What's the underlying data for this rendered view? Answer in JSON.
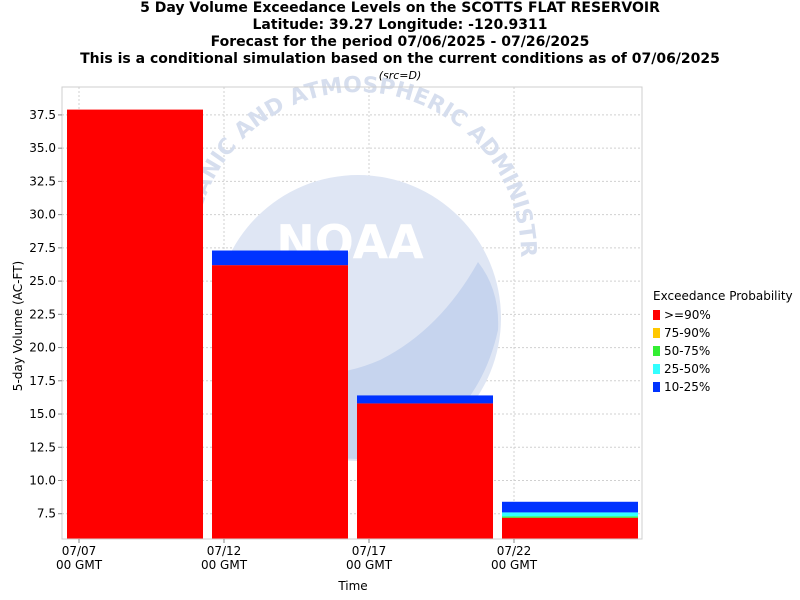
{
  "titles": {
    "line1": "5 Day Volume Exceedance Levels on the SCOTTS FLAT RESERVOIR",
    "line2": "Latitude: 39.27 Longitude: -120.9311",
    "line3": "Forecast for the period 07/06/2025 - 07/26/2025",
    "line4": "This is a conditional simulation based on the current conditions as of 07/06/2025",
    "source": "(src=D)"
  },
  "watermark": {
    "arc_text": "OCEANIC AND ATMOSPHERIC ADMINISTRATION",
    "logo_text": "NOAA"
  },
  "legend": {
    "title": "Exceedance Probability",
    "items": [
      {
        "label": ">=90%",
        "color": "#ff0000"
      },
      {
        "label": "75-90%",
        "color": "#ffc800"
      },
      {
        "label": "50-75%",
        "color": "#33ee33"
      },
      {
        "label": "25-50%",
        "color": "#33ffff"
      },
      {
        "label": "10-25%",
        "color": "#0033ff"
      }
    ]
  },
  "chart_data": {
    "type": "bar",
    "stacked": true,
    "xlabel": "Time",
    "ylabel": "5-day Volume (AC-FT)",
    "ylim": [
      5.6,
      39.6
    ],
    "yticks": [
      "7.5",
      "10.0",
      "12.5",
      "15.0",
      "17.5",
      "20.0",
      "22.5",
      "25.0",
      "27.5",
      "30.0",
      "32.5",
      "35.0",
      "37.5"
    ],
    "xticks": [
      {
        "line1": "07/07",
        "line2": "00 GMT"
      },
      {
        "line1": "07/12",
        "line2": "00 GMT"
      },
      {
        "line1": "07/17",
        "line2": "00 GMT"
      },
      {
        "line1": "07/22",
        "line2": "00 GMT"
      }
    ],
    "grid": true,
    "legend_position": "right",
    "bars": [
      {
        "period": "07/07 - 07/12",
        "levels": {
          ">=90%": 37.9,
          "75-90%": 37.9,
          "50-75%": 37.9,
          "25-50%": 37.9,
          "10-25%": 37.9
        }
      },
      {
        "period": "07/12 - 07/17",
        "levels": {
          ">=90%": 26.2,
          "75-90%": 26.2,
          "50-75%": 26.2,
          "25-50%": 26.2,
          "10-25%": 27.3
        }
      },
      {
        "period": "07/17 - 07/22",
        "levels": {
          ">=90%": 15.8,
          "75-90%": 15.8,
          "50-75%": 15.8,
          "25-50%": 15.8,
          "10-25%": 16.4
        }
      },
      {
        "period": "07/22 - 07/27",
        "levels": {
          ">=90%": 7.2,
          "75-90%": 7.2,
          "50-75%": 7.3,
          "25-50%": 7.6,
          "10-25%": 8.4
        }
      }
    ]
  }
}
